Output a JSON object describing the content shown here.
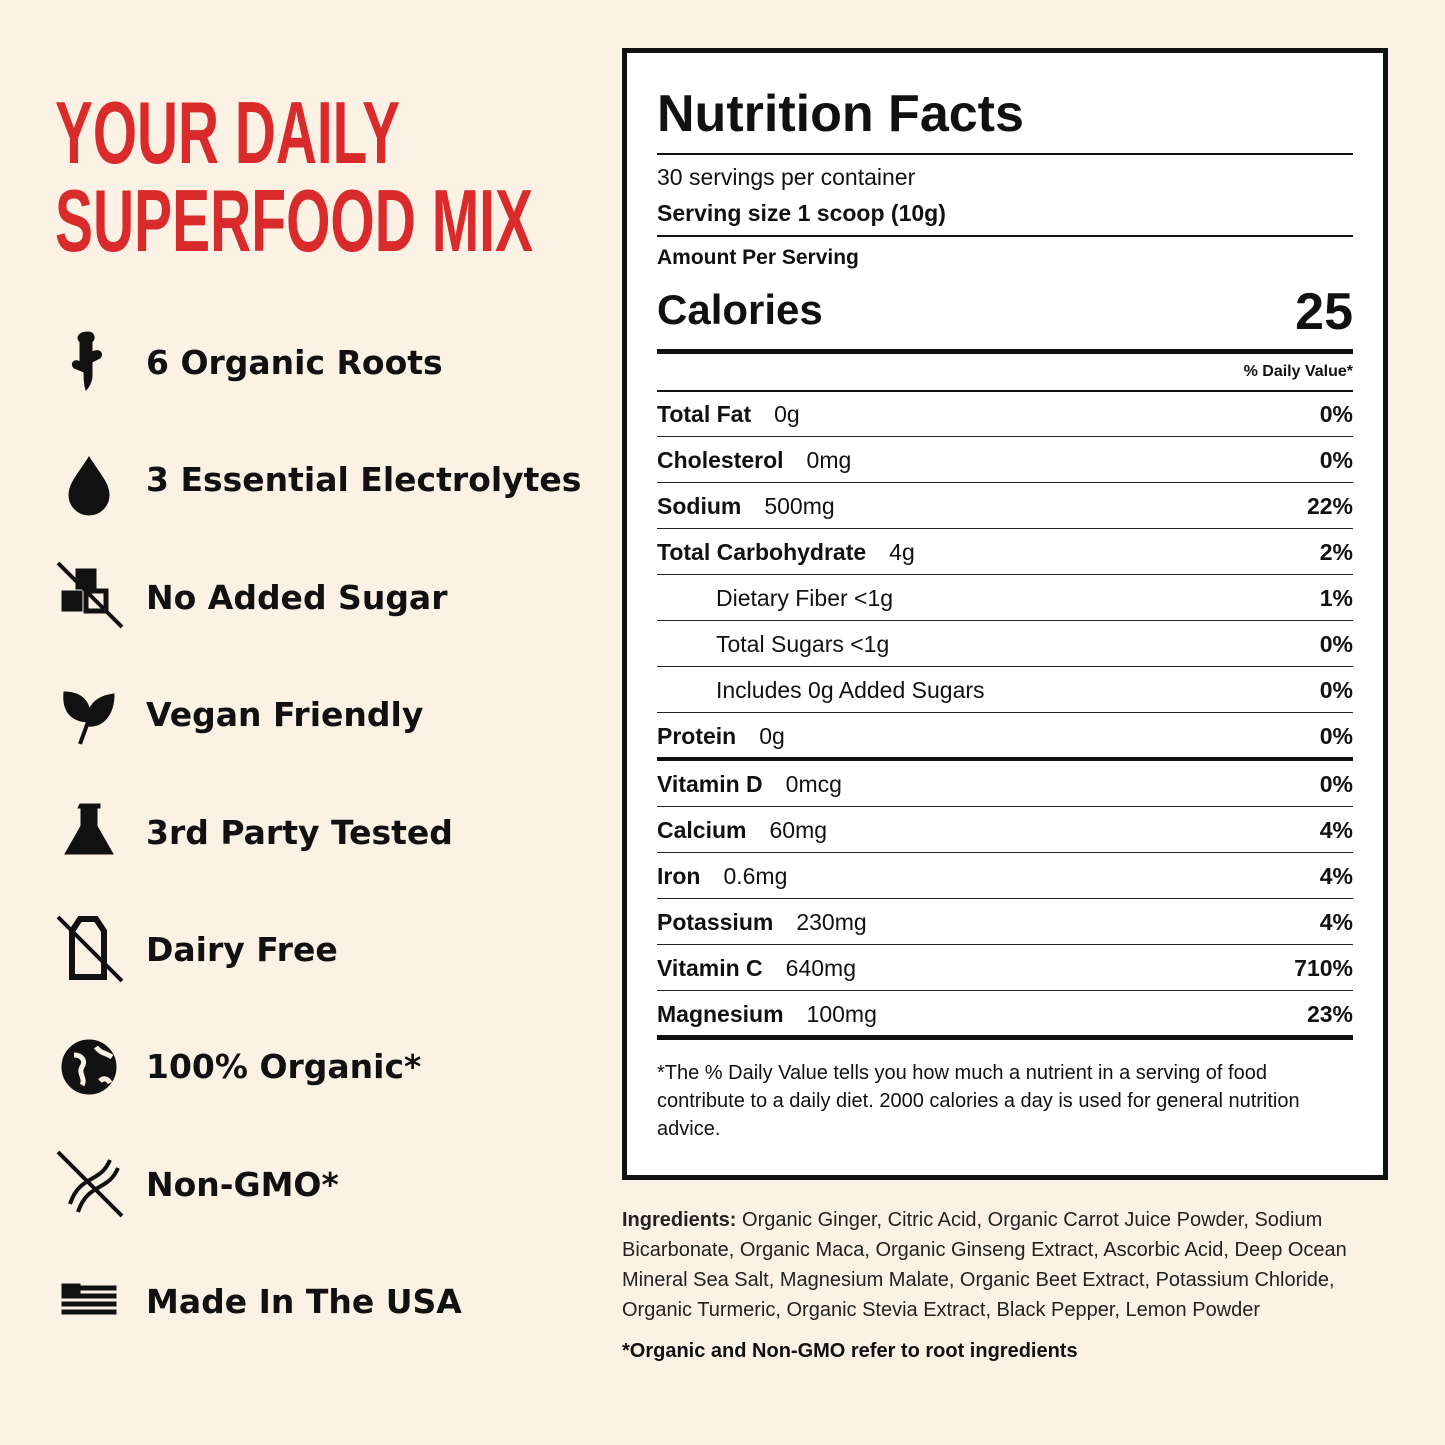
{
  "headline": [
    "YOUR DAILY",
    "SUPERFOOD MIX"
  ],
  "features": [
    "6 Organic Roots",
    "3 Essential Electrolytes",
    "No Added Sugar",
    "Vegan Friendly",
    "3rd Party Tested",
    "Dairy Free",
    "100% Organic*",
    "Non-GMO*",
    "Made In The USA"
  ],
  "nutrition": {
    "title": "Nutrition Facts",
    "servings": "30 servings per container",
    "serving_size": "Serving size 1 scoop (10g)",
    "amount_per_serving": "Amount Per Serving",
    "calories_label": "Calories",
    "calories": "25",
    "dv_header": "% Daily Value*",
    "macros": [
      {
        "name": "Total Fat",
        "amount": "0g",
        "dv": "0%"
      },
      {
        "name": "Cholesterol",
        "amount": "0mg",
        "dv": "0%"
      },
      {
        "name": "Sodium",
        "amount": "500mg",
        "dv": "22%"
      },
      {
        "name": "Total Carbohydrate",
        "amount": "4g",
        "dv": "2%"
      },
      {
        "name": "Dietary Fiber <1g",
        "dv": "1%",
        "indent": true
      },
      {
        "name": "Total Sugars <1g",
        "dv": "0%",
        "indent": true
      },
      {
        "name": "Includes 0g Added Sugars",
        "dv": "0%",
        "indent": true
      },
      {
        "name": "Protein",
        "amount": "0g",
        "dv": "0%"
      }
    ],
    "vitamins": [
      {
        "name": "Vitamin D",
        "amount": "0mcg",
        "dv": "0%"
      },
      {
        "name": "Calcium",
        "amount": "60mg",
        "dv": "4%"
      },
      {
        "name": "Iron",
        "amount": "0.6mg",
        "dv": "4%"
      },
      {
        "name": "Potassium",
        "amount": "230mg",
        "dv": "4%"
      },
      {
        "name": "Vitamin C",
        "amount": "640mg",
        "dv": "710%"
      },
      {
        "name": "Magnesium",
        "amount": "100mg",
        "dv": "23%"
      }
    ],
    "footnote": "*The % Daily Value tells you how much a nutrient in a serving of food contribute to a daily diet. 2000 calories a day is used for general nutrition advice."
  },
  "ingredients": {
    "label": "Ingredients:",
    "text": "Organic Ginger, Citric Acid, Organic Carrot Juice Powder, Sodium Bicarbonate, Organic Maca, Organic Ginseng Extract, Ascorbic Acid, Deep Ocean Mineral Sea Salt, Magnesium Malate, Organic Beet Extract, Potassium Chloride, Organic Turmeric, Organic Stevia Extract, Black Pepper, Lemon Powder"
  },
  "disclaimer": "*Organic and Non-GMO refer to root ingredients"
}
